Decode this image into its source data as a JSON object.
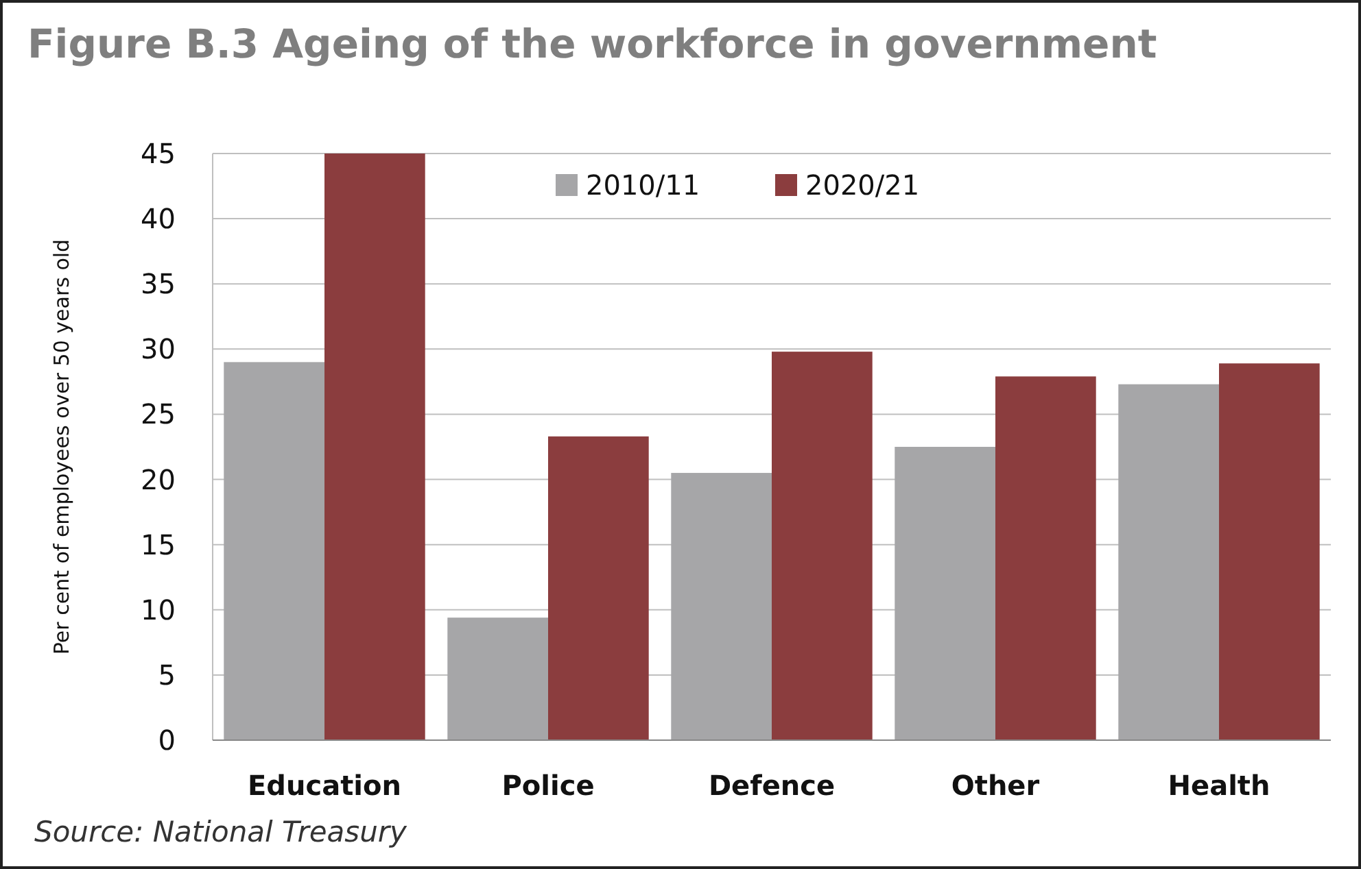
{
  "chart_data": {
    "type": "bar",
    "title": "Figure B.3 Ageing of the workforce in government",
    "ylabel": "Per cent of employees over 50 years old",
    "categories": [
      "Education",
      "Police",
      "Defence",
      "Other",
      "Health"
    ],
    "series": [
      {
        "name": "2010/11",
        "color": "#a6a6a8",
        "values": [
          29.0,
          9.4,
          20.5,
          22.5,
          27.3
        ]
      },
      {
        "name": "2020/21",
        "color": "#8b3d3e",
        "values": [
          45,
          23.3,
          29.8,
          27.9,
          28.9
        ]
      }
    ],
    "ylim": [
      0,
      45
    ],
    "yticks": [
      0,
      5,
      10,
      15,
      20,
      25,
      30,
      35,
      40,
      45
    ],
    "grid": "y",
    "legend": "top",
    "annotations": [
      "Source: National Treasury"
    ]
  }
}
